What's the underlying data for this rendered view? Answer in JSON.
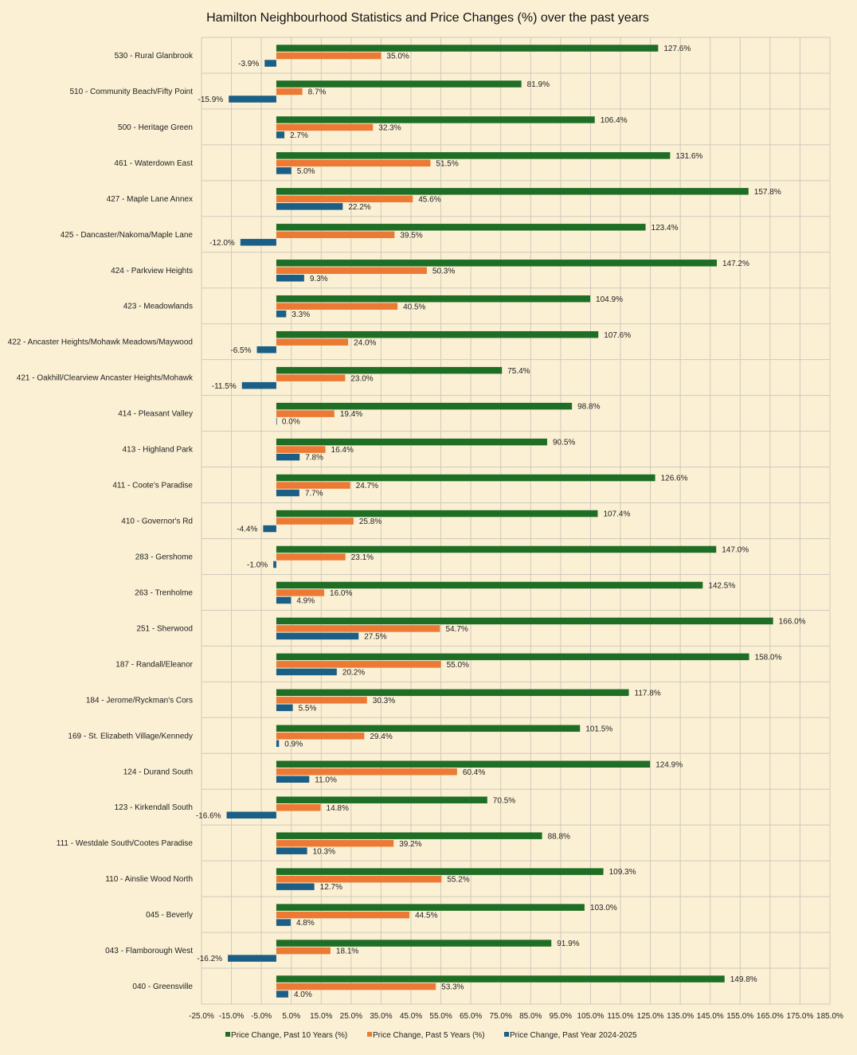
{
  "chart_data": {
    "type": "bar",
    "orientation": "horizontal",
    "title": "Hamilton Neighbourhood Statistics and Price Changes (%) over the past years",
    "xlim": [
      -25,
      185
    ],
    "x_ticks": [
      -25,
      -15,
      -5,
      5,
      15,
      25,
      35,
      45,
      55,
      65,
      75,
      85,
      95,
      105,
      115,
      125,
      135,
      145,
      155,
      165,
      175,
      185
    ],
    "x_tick_labels": [
      "-25.0%",
      "-15.0%",
      "-5.0%",
      "5.0%",
      "15.0%",
      "25.0%",
      "35.0%",
      "45.0%",
      "55.0%",
      "65.0%",
      "75.0%",
      "85.0%",
      "95.0%",
      "105.0%",
      "115.0%",
      "125.0%",
      "135.0%",
      "145.0%",
      "155.0%",
      "165.0%",
      "175.0%",
      "185.0%"
    ],
    "grid": true,
    "legend_position": "bottom",
    "categories": [
      "530 - Rural Glanbrook",
      "510 - Community Beach/Fifty Point",
      "500 - Heritage Green",
      "461 - Waterdown East",
      "427 - Maple Lane Annex",
      "425 - Dancaster/Nakoma/Maple Lane",
      "424 - Parkview Heights",
      "423 - Meadowlands",
      "422 - Ancaster Heights/Mohawk Meadows/Maywood",
      "421 - Oakhill/Clearview Ancaster Heights/Mohawk",
      "414 - Pleasant Valley",
      "413 - Highland Park",
      "411 - Coote's Paradise",
      "410 - Governor's Rd",
      "283 - Gershome",
      "263 - Trenholme",
      "251 - Sherwood",
      "187 - Randall/Eleanor",
      "184 - Jerome/Ryckman's Cors",
      "169 - St. Elizabeth Village/Kennedy",
      "124 - Durand South",
      "123 - Kirkendall South",
      "111 - Westdale South/Cootes Paradise",
      "110 - Ainslie Wood North",
      "045 - Beverly",
      "043 - Flamborough West",
      "040 - Greensville"
    ],
    "series": [
      {
        "name": "Price Change, Past 10 Years (%)",
        "color": "#1f6e25",
        "values": [
          127.6,
          81.9,
          106.4,
          131.6,
          157.8,
          123.4,
          147.2,
          104.9,
          107.6,
          75.4,
          98.8,
          90.5,
          126.6,
          107.4,
          147.0,
          142.5,
          166.0,
          158.0,
          117.8,
          101.5,
          124.9,
          70.5,
          88.8,
          109.3,
          103.0,
          91.9,
          149.8
        ],
        "labels": [
          "127.6%",
          "81.9%",
          "106.4%",
          "131.6%",
          "157.8%",
          "123.4%",
          "147.2%",
          "104.9%",
          "107.6%",
          "75.4%",
          "98.8%",
          "90.5%",
          "126.6%",
          "107.4%",
          "147.0%",
          "142.5%",
          "166.0%",
          "158.0%",
          "117.8%",
          "101.5%",
          "124.9%",
          "70.5%",
          "88.8%",
          "109.3%",
          "103.0%",
          "91.9%",
          "149.8%"
        ]
      },
      {
        "name": "Price Change, Past 5 Years (%)",
        "color": "#ec7a35",
        "values": [
          35.0,
          8.7,
          32.3,
          51.5,
          45.6,
          39.5,
          50.3,
          40.5,
          24.0,
          23.0,
          19.4,
          16.4,
          24.7,
          25.8,
          23.1,
          16.0,
          54.7,
          55.0,
          30.3,
          29.4,
          60.4,
          14.8,
          39.2,
          55.2,
          44.5,
          18.1,
          53.3
        ],
        "labels": [
          "35.0%",
          "8.7%",
          "32.3%",
          "51.5%",
          "45.6%",
          "39.5%",
          "50.3%",
          "40.5%",
          "24.0%",
          "23.0%",
          "19.4%",
          "16.4%",
          "24.7%",
          "25.8%",
          "23.1%",
          "16.0%",
          "54.7%",
          "55.0%",
          "30.3%",
          "29.4%",
          "60.4%",
          "14.8%",
          "39.2%",
          "55.2%",
          "44.5%",
          "18.1%",
          "53.3%"
        ]
      },
      {
        "name": "Price Change, Past Year 2024-2025",
        "color": "#1b5f86",
        "values": [
          -3.9,
          -15.9,
          2.7,
          5.0,
          22.2,
          -12.0,
          9.3,
          3.3,
          -6.5,
          -11.5,
          0.0,
          7.8,
          7.7,
          -4.4,
          -1.0,
          4.9,
          27.5,
          20.2,
          5.5,
          0.9,
          11.0,
          -16.6,
          10.3,
          12.7,
          4.8,
          -16.2,
          4.0
        ],
        "labels": [
          "-3.9%",
          "-15.9%",
          "2.7%",
          "5.0%",
          "22.2%",
          "-12.0%",
          "9.3%",
          "3.3%",
          "-6.5%",
          "-11.5%",
          "0.0%",
          "7.8%",
          "7.7%",
          "-4.4%",
          "-1.0%",
          "4.9%",
          "27.5%",
          "20.2%",
          "5.5%",
          "0.9%",
          "11.0%",
          "-16.6%",
          "10.3%",
          "12.7%",
          "4.8%",
          "-16.2%",
          "4.0%"
        ]
      }
    ]
  }
}
